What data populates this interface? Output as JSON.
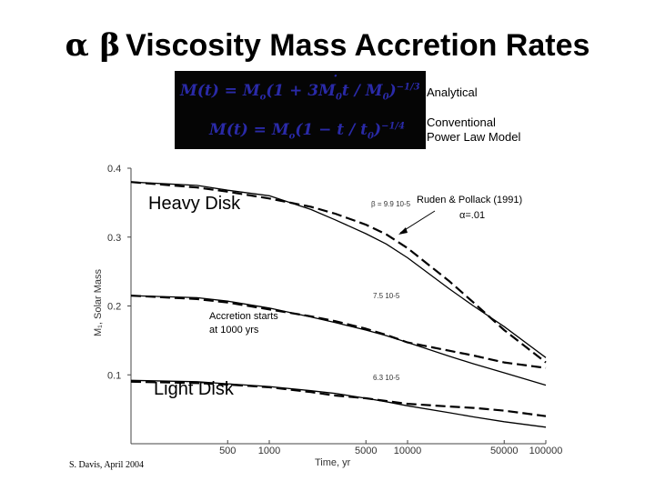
{
  "header": {
    "greek": "α β",
    "title": "Viscosity Mass Accretion Rates"
  },
  "legend": {
    "analytical": "Analytical",
    "conventional_line1": "Conventional",
    "conventional_line2": "Power Law Model"
  },
  "credit": "S. Davis, April 2004",
  "chart_data": {
    "type": "line",
    "xlabel": "Time, yr",
    "ylabel": "M₁, Solar Mass",
    "x_scale": "log",
    "xlim": [
      100,
      100000
    ],
    "ylim": [
      0.0,
      0.4
    ],
    "x_ticks": [
      "500",
      "1000",
      "5000",
      "10000",
      "50000",
      "100000"
    ],
    "x_tick_values": [
      500,
      1000,
      5000,
      10000,
      50000,
      100000
    ],
    "y_ticks": [
      "0.4",
      "0.3",
      "0.2",
      "0.1"
    ],
    "y_tick_values": [
      0.4,
      0.3,
      0.2,
      0.1
    ],
    "x": [
      100,
      300,
      500,
      1000,
      2000,
      3000,
      5000,
      7000,
      10000,
      20000,
      30000,
      50000,
      100000
    ],
    "series": [
      {
        "style": "solid",
        "values": [
          0.38,
          0.375,
          0.368,
          0.36,
          0.34,
          0.325,
          0.305,
          0.29,
          0.27,
          0.225,
          0.2,
          0.17,
          0.125
        ]
      },
      {
        "style": "dashed",
        "values": [
          0.38,
          0.372,
          0.366,
          0.356,
          0.344,
          0.334,
          0.318,
          0.304,
          0.284,
          0.236,
          0.205,
          0.165,
          0.118
        ]
      },
      {
        "style": "solid",
        "values": [
          0.215,
          0.212,
          0.207,
          0.197,
          0.184,
          0.176,
          0.165,
          0.157,
          0.147,
          0.127,
          0.116,
          0.103,
          0.085
        ]
      },
      {
        "style": "dashed",
        "values": [
          0.215,
          0.21,
          0.205,
          0.195,
          0.185,
          0.178,
          0.167,
          0.158,
          0.147,
          0.135,
          0.128,
          0.118,
          0.11
        ]
      },
      {
        "style": "solid",
        "values": [
          0.092,
          0.09,
          0.087,
          0.083,
          0.077,
          0.073,
          0.066,
          0.061,
          0.055,
          0.045,
          0.039,
          0.032,
          0.024
        ]
      },
      {
        "style": "dashed",
        "values": [
          0.09,
          0.088,
          0.086,
          0.082,
          0.075,
          0.07,
          0.066,
          0.062,
          0.058,
          0.054,
          0.052,
          0.048,
          0.04
        ]
      }
    ],
    "annotations": {
      "heavy": "Heavy Disk",
      "light": "Light Disk",
      "accretion_1": "Accretion starts",
      "accretion_2": "at 1000 yrs",
      "beta_top": "β = 9.9 10-5",
      "beta_mid": "7.5 10-5",
      "beta_low": "6.3 10-5",
      "ruden_1": "Ruden & Pollack (1991)",
      "ruden_2": "α=.01"
    }
  }
}
